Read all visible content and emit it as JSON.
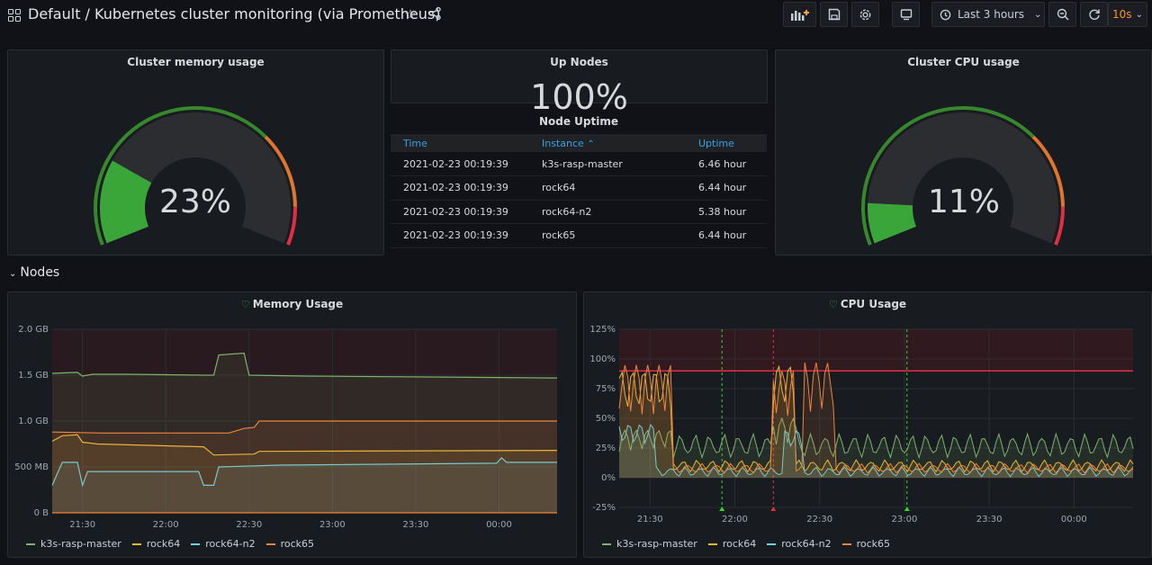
{
  "header": {
    "title": "Default / Kubernetes cluster monitoring (via Prometheus)",
    "time_range": "Last 3 hours",
    "refresh": "10s"
  },
  "panels": {
    "memory_gauge": {
      "title": "Cluster memory usage",
      "value_text": "23%",
      "value": 23
    },
    "up_nodes": {
      "title": "Up Nodes",
      "value_text": "100%"
    },
    "cpu_gauge": {
      "title": "Cluster CPU usage",
      "value_text": "11%",
      "value": 11
    },
    "node_uptime": {
      "title": "Node Uptime",
      "columns": [
        "Time",
        "Instance",
        "Uptime"
      ],
      "sort_indicator": "⌃",
      "rows": [
        [
          "2021-02-23 00:19:39",
          "k3s-rasp-master",
          "6.46 hour"
        ],
        [
          "2021-02-23 00:19:39",
          "rock64",
          "6.44 hour"
        ],
        [
          "2021-02-23 00:19:39",
          "rock64-n2",
          "5.38 hour"
        ],
        [
          "2021-02-23 00:19:39",
          "rock65",
          "6.44 hour"
        ]
      ]
    }
  },
  "row": {
    "title": "Nodes"
  },
  "colors": {
    "green": "#37872d",
    "orange": "#e0752d",
    "red": "#e02f44",
    "series_k3s": "#7eb26d",
    "series_rock64": "#eab839",
    "series_n2": "#6ed0e0",
    "series_rock65": "#ef843c"
  },
  "chart_data": [
    {
      "type": "line",
      "title": "Memory Usage",
      "x_ticks": [
        "21:30",
        "22:00",
        "22:30",
        "23:00",
        "23:30",
        "00:00"
      ],
      "y_ticks": [
        "2.0 GB",
        "1.5 GB",
        "1.0 GB",
        "500 MB",
        "0 B"
      ],
      "ylim": [
        0,
        2.0
      ],
      "yunit": "GB",
      "legend": [
        "k3s-rasp-master",
        "rock64",
        "rock64-n2",
        "rock65"
      ],
      "series": [
        {
          "name": "k3s-rasp-master",
          "points": [
            [
              0,
              1.52
            ],
            [
              0.05,
              1.53
            ],
            [
              0.06,
              1.49
            ],
            [
              0.08,
              1.51
            ],
            [
              0.15,
              1.51
            ],
            [
              0.3,
              1.5
            ],
            [
              0.32,
              1.5
            ],
            [
              0.33,
              1.72
            ],
            [
              0.38,
              1.74
            ],
            [
              0.39,
              1.5
            ],
            [
              0.5,
              1.49
            ],
            [
              1,
              1.47
            ]
          ]
        },
        {
          "name": "rock64",
          "points": [
            [
              0,
              0.78
            ],
            [
              0.02,
              0.84
            ],
            [
              0.05,
              0.85
            ],
            [
              0.06,
              0.77
            ],
            [
              0.09,
              0.75
            ],
            [
              0.3,
              0.72
            ],
            [
              0.32,
              0.63
            ],
            [
              0.4,
              0.64
            ],
            [
              0.41,
              0.67
            ],
            [
              1,
              0.68
            ]
          ]
        },
        {
          "name": "rock64-n2",
          "points": [
            [
              0,
              0.3
            ],
            [
              0.02,
              0.55
            ],
            [
              0.05,
              0.55
            ],
            [
              0.06,
              0.3
            ],
            [
              0.07,
              0.45
            ],
            [
              0.29,
              0.45
            ],
            [
              0.3,
              0.3
            ],
            [
              0.32,
              0.3
            ],
            [
              0.33,
              0.5
            ],
            [
              0.45,
              0.52
            ],
            [
              0.88,
              0.54
            ],
            [
              0.89,
              0.6
            ],
            [
              0.9,
              0.55
            ],
            [
              1,
              0.55
            ]
          ]
        },
        {
          "name": "rock65",
          "points": [
            [
              0,
              0.88
            ],
            [
              0.1,
              0.87
            ],
            [
              0.35,
              0.87
            ],
            [
              0.38,
              0.92
            ],
            [
              0.4,
              0.93
            ],
            [
              0.41,
              1.0
            ],
            [
              0.5,
              1.0
            ],
            [
              1,
              1.0
            ]
          ]
        }
      ]
    },
    {
      "type": "line",
      "title": "CPU Usage",
      "x_ticks": [
        "21:30",
        "22:00",
        "22:30",
        "23:00",
        "23:30",
        "00:00"
      ],
      "y_ticks": [
        "125%",
        "100%",
        "75%",
        "50%",
        "25%",
        "0%",
        "-25%"
      ],
      "ylim": [
        -25,
        125
      ],
      "yunit": "%",
      "threshold": 90,
      "legend": [
        "k3s-rasp-master",
        "rock64",
        "rock64-n2",
        "rock65"
      ],
      "annotations": [
        0.2,
        0.3,
        0.56
      ],
      "series": [
        {
          "name": "k3s-rasp-master",
          "avg": 27,
          "amp": 10,
          "high_ranges": [
            [
              0,
              0.1,
              40
            ],
            [
              0.3,
              0.35,
              50
            ]
          ]
        },
        {
          "name": "rock64",
          "avg": 10,
          "amp": 5,
          "high_ranges": [
            [
              0,
              0.1,
              90
            ],
            [
              0.3,
              0.34,
              95
            ]
          ]
        },
        {
          "name": "rock64-n2",
          "avg": 5,
          "amp": 4,
          "high_ranges": [
            [
              0,
              0.07,
              45
            ],
            [
              0.32,
              0.36,
              40
            ]
          ]
        },
        {
          "name": "rock65",
          "avg": 8,
          "amp": 4,
          "high_ranges": [
            [
              0,
              0.1,
              95
            ],
            [
              0.3,
              0.34,
              90
            ],
            [
              0.36,
              0.42,
              97
            ]
          ]
        }
      ]
    }
  ]
}
